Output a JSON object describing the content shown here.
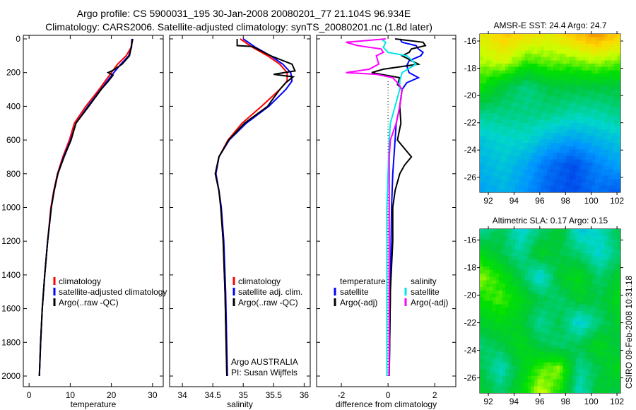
{
  "title": {
    "line1": "Argo profile: CS 5900031_195 30-Jan-2008 20080201_77 21.104S 96.934E",
    "line2": "Climatology: CARS2006. Satellite-adjusted climatology: synTS_20080201.nc (1.8d later)"
  },
  "footer_stamp": "CSIRO 09-Feb-2008 10:31:18",
  "chart_data": [
    {
      "type": "line",
      "id": "temperature",
      "xlabel": "temperature",
      "ylabel": "",
      "xlim": [
        -1.4,
        32.6
      ],
      "ylim": [
        2063,
        -21
      ],
      "xticks": [
        0,
        10,
        20,
        30
      ],
      "yticks": [
        0,
        200,
        400,
        600,
        800,
        1000,
        1200,
        1400,
        1600,
        1800,
        2000
      ],
      "legend": [
        "climatology",
        "satellite-adjusted climatology",
        "Argo(..raw -QC)"
      ],
      "legend_placement": "lower-right",
      "series": [
        {
          "name": "climatology",
          "color": "#ff0000",
          "points": [
            [
              0,
              25
            ],
            [
              50,
              24.8
            ],
            [
              100,
              23.6
            ],
            [
              150,
              21.5
            ],
            [
              200,
              20
            ],
            [
              250,
              18.5
            ],
            [
              300,
              17
            ],
            [
              400,
              13.8
            ],
            [
              500,
              11
            ],
            [
              600,
              9.8
            ],
            [
              700,
              8.2
            ],
            [
              800,
              6.9
            ],
            [
              900,
              6
            ],
            [
              1000,
              5.3
            ],
            [
              1200,
              4.5
            ],
            [
              1400,
              3.8
            ],
            [
              1600,
              3.2
            ],
            [
              1800,
              2.8
            ],
            [
              2000,
              2.5
            ]
          ]
        },
        {
          "name": "satellite-adjusted climatology",
          "color": "#0000ff",
          "points": [
            [
              0,
              25
            ],
            [
              50,
              24.9
            ],
            [
              100,
              24.2
            ],
            [
              150,
              22.3
            ],
            [
              200,
              20.6
            ],
            [
              250,
              19
            ],
            [
              300,
              17.4
            ],
            [
              400,
              14.3
            ],
            [
              500,
              11.4
            ],
            [
              600,
              10.1
            ],
            [
              700,
              8.4
            ],
            [
              800,
              7
            ],
            [
              900,
              6.1
            ],
            [
              1000,
              5.4
            ],
            [
              1200,
              4.5
            ],
            [
              1400,
              3.8
            ],
            [
              1600,
              3.2
            ],
            [
              1800,
              2.8
            ],
            [
              2000,
              2.5
            ]
          ]
        },
        {
          "name": "Argo(..raw -QC)",
          "color": "#000000",
          "points": [
            [
              0,
              25.2
            ],
            [
              50,
              24.8
            ],
            [
              100,
              24.4
            ],
            [
              150,
              22.6
            ],
            [
              185,
              20.5
            ],
            [
              200,
              19.2
            ],
            [
              215,
              20.4
            ],
            [
              250,
              19.3
            ],
            [
              300,
              17.5
            ],
            [
              400,
              14.5
            ],
            [
              500,
              11.4
            ],
            [
              600,
              10.2
            ],
            [
              700,
              8.5
            ],
            [
              800,
              7
            ],
            [
              900,
              6.1
            ],
            [
              1000,
              5.4
            ],
            [
              1200,
              4.5
            ],
            [
              1400,
              3.8
            ],
            [
              1600,
              3.2
            ],
            [
              1800,
              2.8
            ],
            [
              2000,
              2.5
            ]
          ]
        }
      ]
    },
    {
      "type": "line",
      "id": "salinity",
      "xlabel": "salinity",
      "xlim": [
        33.79,
        36.1
      ],
      "ylim": [
        2063,
        -21
      ],
      "xticks": [
        34,
        34.5,
        35,
        35.5,
        36
      ],
      "yticks": [
        0,
        200,
        400,
        600,
        800,
        1000,
        1200,
        1400,
        1600,
        1800,
        2000
      ],
      "legend": [
        "climatology",
        "satellite adj. clim.",
        "Argo(..raw -QC)"
      ],
      "legend_placement": "lower-right",
      "annotation": [
        "Argo AUSTRALIA",
        "PI: Susan Wijffels"
      ],
      "series": [
        {
          "name": "climatology",
          "color": "#ff0000",
          "points": [
            [
              0,
              34.95
            ],
            [
              50,
              35.15
            ],
            [
              100,
              35.4
            ],
            [
              150,
              35.6
            ],
            [
              200,
              35.72
            ],
            [
              250,
              35.72
            ],
            [
              300,
              35.6
            ],
            [
              400,
              35.3
            ],
            [
              500,
              34.98
            ],
            [
              600,
              34.75
            ],
            [
              700,
              34.6
            ],
            [
              800,
              34.55
            ],
            [
              900,
              34.6
            ],
            [
              1000,
              34.63
            ],
            [
              1200,
              34.67
            ],
            [
              1500,
              34.7
            ],
            [
              2000,
              34.73
            ]
          ]
        },
        {
          "name": "satellite adj. clim.",
          "color": "#0000ff",
          "points": [
            [
              0,
              35.0
            ],
            [
              50,
              35.2
            ],
            [
              100,
              35.45
            ],
            [
              150,
              35.65
            ],
            [
              200,
              35.78
            ],
            [
              250,
              35.8
            ],
            [
              300,
              35.7
            ],
            [
              400,
              35.42
            ],
            [
              500,
              35.05
            ],
            [
              600,
              34.77
            ],
            [
              700,
              34.6
            ],
            [
              800,
              34.55
            ],
            [
              900,
              34.6
            ],
            [
              1000,
              34.64
            ],
            [
              1200,
              34.68
            ],
            [
              1500,
              34.71
            ],
            [
              2000,
              34.74
            ]
          ]
        },
        {
          "name": "Argo(..raw -QC)",
          "color": "#000000",
          "points": [
            [
              0,
              34.9
            ],
            [
              40,
              34.9
            ],
            [
              45,
              35.15
            ],
            [
              100,
              35.45
            ],
            [
              150,
              35.8
            ],
            [
              190,
              35.85
            ],
            [
              210,
              35.5
            ],
            [
              225,
              35.82
            ],
            [
              260,
              35.7
            ],
            [
              300,
              35.6
            ],
            [
              400,
              35.4
            ],
            [
              500,
              35.02
            ],
            [
              600,
              34.76
            ],
            [
              700,
              34.6
            ],
            [
              800,
              34.54
            ],
            [
              900,
              34.6
            ],
            [
              1000,
              34.63
            ],
            [
              1200,
              34.67
            ],
            [
              1500,
              34.7
            ],
            [
              2000,
              34.73
            ]
          ]
        }
      ]
    },
    {
      "type": "line",
      "id": "difference",
      "xlabel": "difference from climatology",
      "xlim": [
        -3.06,
        2.9
      ],
      "ylim": [
        2063,
        -21
      ],
      "xticks": [
        -2,
        0,
        2
      ],
      "yticks": [
        0,
        200,
        400,
        600,
        800,
        1000,
        1200,
        1400,
        1600,
        1800,
        2000
      ],
      "legend_groups": [
        {
          "heading": "temperature",
          "items": [
            "satellite",
            "Argo(-adj)"
          ]
        },
        {
          "heading": "salinity",
          "items": [
            "satellite",
            "Argo(-adj)"
          ]
        }
      ],
      "legend_placement": "lower-center",
      "series": [
        {
          "name": "temperature satellite",
          "color": "#0000ff",
          "points": [
            [
              0,
              0.5
            ],
            [
              20,
              0.6
            ],
            [
              40,
              1.2
            ],
            [
              60,
              1.3
            ],
            [
              80,
              1.5
            ],
            [
              100,
              1.4
            ],
            [
              130,
              0.9
            ],
            [
              160,
              0.8
            ],
            [
              200,
              0.9
            ],
            [
              230,
              1.3
            ],
            [
              260,
              0.8
            ],
            [
              300,
              0.6
            ],
            [
              400,
              0.5
            ],
            [
              500,
              0.35
            ],
            [
              600,
              0.3
            ],
            [
              800,
              0.2
            ],
            [
              1000,
              0.15
            ],
            [
              1500,
              0.1
            ],
            [
              2000,
              0.05
            ]
          ]
        },
        {
          "name": "temperature Argo(-adj)",
          "color": "#000000",
          "points": [
            [
              0,
              0.3
            ],
            [
              20,
              1.5
            ],
            [
              40,
              1.6
            ],
            [
              60,
              1.0
            ],
            [
              80,
              0.9
            ],
            [
              100,
              0.6
            ],
            [
              150,
              1.3
            ],
            [
              180,
              -0.2
            ],
            [
              200,
              -0.7
            ],
            [
              215,
              -0.1
            ],
            [
              230,
              0.5
            ],
            [
              270,
              0.4
            ],
            [
              300,
              0.6
            ],
            [
              400,
              0.5
            ],
            [
              500,
              0.55
            ],
            [
              600,
              0.4
            ],
            [
              650,
              0.7
            ],
            [
              700,
              1.0
            ],
            [
              750,
              0.7
            ],
            [
              800,
              0.5
            ],
            [
              900,
              0.3
            ],
            [
              1000,
              0.2
            ],
            [
              1200,
              0.2
            ],
            [
              1500,
              0.1
            ],
            [
              2000,
              0.05
            ]
          ]
        },
        {
          "name": "salinity satellite",
          "color": "#00e5ee",
          "points": [
            [
              0,
              -0.3
            ],
            [
              20,
              -0.1
            ],
            [
              50,
              -0.2
            ],
            [
              80,
              0.0
            ],
            [
              100,
              0.8
            ],
            [
              150,
              1.2
            ],
            [
              200,
              0.6
            ],
            [
              250,
              0.5
            ],
            [
              300,
              0.5
            ],
            [
              400,
              0.3
            ],
            [
              500,
              0.1
            ],
            [
              600,
              0.05
            ],
            [
              800,
              0.0
            ],
            [
              1000,
              -0.05
            ],
            [
              2000,
              -0.05
            ]
          ]
        },
        {
          "name": "salinity Argo(-adj)",
          "color": "#ff00ff",
          "points": [
            [
              0,
              -0.1
            ],
            [
              20,
              -1.8
            ],
            [
              40,
              -1.3
            ],
            [
              60,
              -0.3
            ],
            [
              80,
              -0.2
            ],
            [
              100,
              -0.5
            ],
            [
              150,
              -0.4
            ],
            [
              180,
              -0.8
            ],
            [
              200,
              -1.8
            ],
            [
              210,
              -0.5
            ],
            [
              230,
              0.2
            ],
            [
              260,
              0.4
            ],
            [
              300,
              0.6
            ],
            [
              400,
              0.5
            ],
            [
              500,
              0.35
            ],
            [
              600,
              0.1
            ],
            [
              700,
              0.05
            ],
            [
              900,
              0.05
            ],
            [
              2000,
              0.05
            ]
          ]
        }
      ]
    },
    {
      "type": "heatmap",
      "id": "sst-map",
      "title": "AMSR-E SST: 24.4 Argo: 24.7",
      "xlim": [
        91.34,
        102.27
      ],
      "ylim": [
        -27.1,
        -15.48
      ],
      "xticks": [
        92,
        94,
        96,
        98,
        100,
        102
      ],
      "yticks": [
        -16,
        -18,
        -20,
        -22,
        -24,
        -26
      ],
      "marker": [
        96.934,
        -21.104
      ],
      "crange": [
        23.5,
        26.1
      ],
      "grid": [
        [
          25.6,
          25.8,
          25.7,
          25.6,
          25.8,
          26.0,
          25.8
        ],
        [
          25.4,
          25.5,
          25.2,
          25.3,
          25.3,
          25.4,
          25.3
        ],
        [
          25.1,
          24.8,
          24.6,
          24.8,
          24.8,
          24.8,
          24.8
        ],
        [
          24.6,
          24.6,
          24.6,
          24.6,
          24.5,
          24.5,
          24.6
        ],
        [
          24.3,
          24.4,
          24.4,
          24.2,
          24.1,
          24.2,
          24.3
        ],
        [
          24.2,
          24.3,
          24.1,
          23.8,
          23.6,
          23.9,
          24.1
        ],
        [
          24.1,
          24.2,
          24.0,
          23.7,
          23.6,
          23.8,
          23.7
        ]
      ]
    },
    {
      "type": "heatmap",
      "id": "sla-map",
      "title": "Altimetric SLA: 0.17 Argo: 0.15",
      "xlim": [
        91.34,
        102.27
      ],
      "ylim": [
        -27.1,
        -15.2
      ],
      "xticks": [
        92,
        94,
        96,
        98,
        100,
        102
      ],
      "yticks": [
        -16,
        -18,
        -20,
        -22,
        -24,
        -26
      ],
      "marker": [
        96.934,
        -21.104
      ],
      "crange": [
        -0.1,
        0.35
      ],
      "grid": [
        [
          0.08,
          0.12,
          0.05,
          0.1,
          0.14,
          0.04,
          0.06,
          0.12
        ],
        [
          0.16,
          0.12,
          0.08,
          0.15,
          0.12,
          0.1,
          0.05,
          0.1
        ],
        [
          0.22,
          0.18,
          0.12,
          0.04,
          0.14,
          0.16,
          0.1,
          0.14
        ],
        [
          0.18,
          0.2,
          0.16,
          0.12,
          0.1,
          0.14,
          0.12,
          0.16
        ],
        [
          0.14,
          0.16,
          0.14,
          0.08,
          0.12,
          0.04,
          0.1,
          0.14
        ],
        [
          0.1,
          0.12,
          0.16,
          0.12,
          0.1,
          0.12,
          0.16,
          0.12
        ],
        [
          0.12,
          0.06,
          0.14,
          0.2,
          0.22,
          0.08,
          0.12,
          0.16
        ],
        [
          0.14,
          0.1,
          0.16,
          0.24,
          0.18,
          0.06,
          0.14,
          0.12
        ]
      ]
    }
  ]
}
